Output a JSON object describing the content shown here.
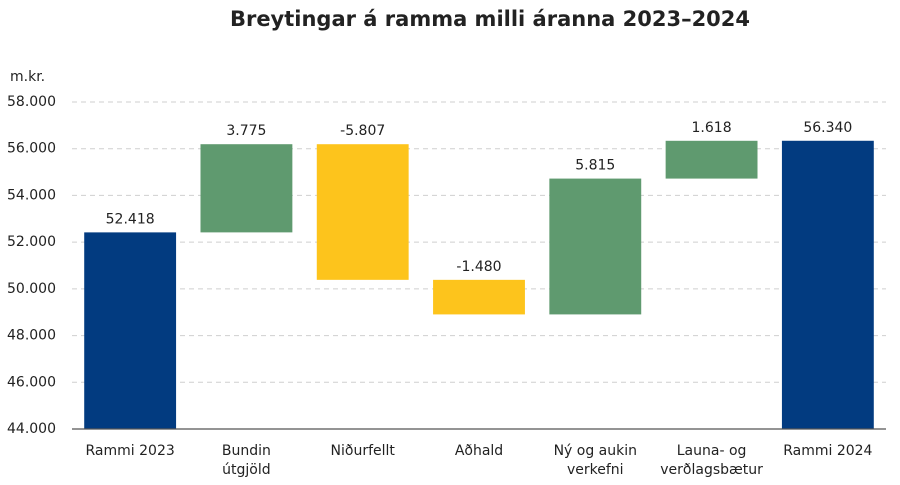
{
  "chart_data": {
    "type": "waterfall",
    "title": "Breytingar á ramma milli áranna 2023–2024",
    "y_label": "m.kr.",
    "categories": [
      [
        "Rammi 2023"
      ],
      [
        "Bundin",
        "útgjöld"
      ],
      [
        "Niðurfellt"
      ],
      [
        "Aðhald"
      ],
      [
        "Ný og aukin",
        "verkefni"
      ],
      [
        "Launa- og",
        "verðlagsbætur"
      ],
      [
        "Rammi 2024"
      ]
    ],
    "values": [
      52418,
      3775,
      -5807,
      -1480,
      5815,
      1618,
      56340
    ],
    "value_labels": [
      "52.418",
      "3.775",
      "-5.807",
      "-1.480",
      "5.815",
      "1.618",
      "56.340"
    ],
    "colors": [
      "#023b80",
      "#5f9a6f",
      "#fdc41c",
      "#fdc41c",
      "#5f9a6f",
      "#5f9a6f",
      "#023b80"
    ],
    "ylim": [
      44000,
      58000
    ],
    "yticks": [
      {
        "value": 44000,
        "label": "44.000"
      },
      {
        "value": 46000,
        "label": "46.000"
      },
      {
        "value": 48000,
        "label": "48.000"
      },
      {
        "value": 50000,
        "label": "50.000"
      },
      {
        "value": 52000,
        "label": "52.000"
      },
      {
        "value": 54000,
        "label": "54.000"
      },
      {
        "value": 56000,
        "label": "56.000"
      },
      {
        "value": 58000,
        "label": "58.000"
      }
    ],
    "grid": true
  }
}
